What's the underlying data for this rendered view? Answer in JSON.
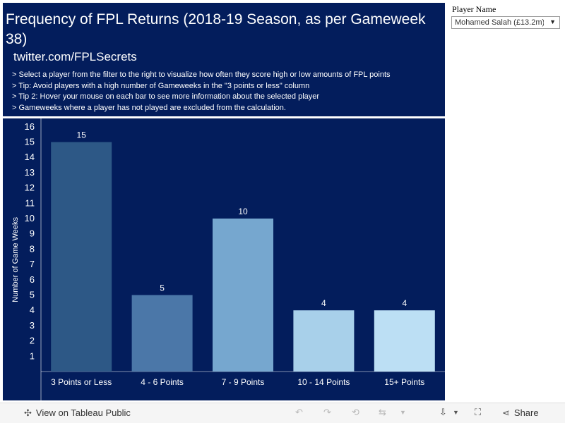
{
  "header": {
    "title": "Frequency of FPL Returns (2018-19 Season, as per Gameweek 38)",
    "twitter": "twitter.com/FPLSecrets",
    "tips": [
      "> Select a player from the filter to the right to visualize how often they score high or low amounts of FPL points",
      "> Tip: Avoid players with a high number of Gameweeks in the \"3 points or less\" column",
      "> Tip 2: Hover your mouse on each bar to see more information about the selected player",
      "> Gameweeks where a player has not played are excluded from the calculation."
    ]
  },
  "filter": {
    "label": "Player Name",
    "selected": "Mohamed Salah (£13.2m)"
  },
  "toolbar": {
    "view_label": "View on Tableau Public",
    "share_label": "Share"
  },
  "colors": {
    "background": "#031d5c",
    "bars": [
      "#2d5886",
      "#4b77a8",
      "#76a7cf",
      "#a8d0ea",
      "#bcdff4"
    ]
  },
  "chart_data": {
    "type": "bar",
    "categories": [
      "3 Points or Less",
      "4 - 6 Points",
      "7 - 9 Points",
      "10 - 14 Points",
      "15+ Points"
    ],
    "values": [
      15,
      5,
      10,
      4,
      4
    ],
    "data_labels": [
      "15",
      "5",
      "10",
      "4",
      "4"
    ],
    "ylabel": "Number of Game Weeks",
    "xlabel": "",
    "ylim": [
      0,
      16
    ],
    "yticks": [
      1,
      2,
      3,
      4,
      5,
      6,
      7,
      8,
      9,
      10,
      11,
      12,
      13,
      14,
      15,
      16
    ],
    "grid": false
  }
}
